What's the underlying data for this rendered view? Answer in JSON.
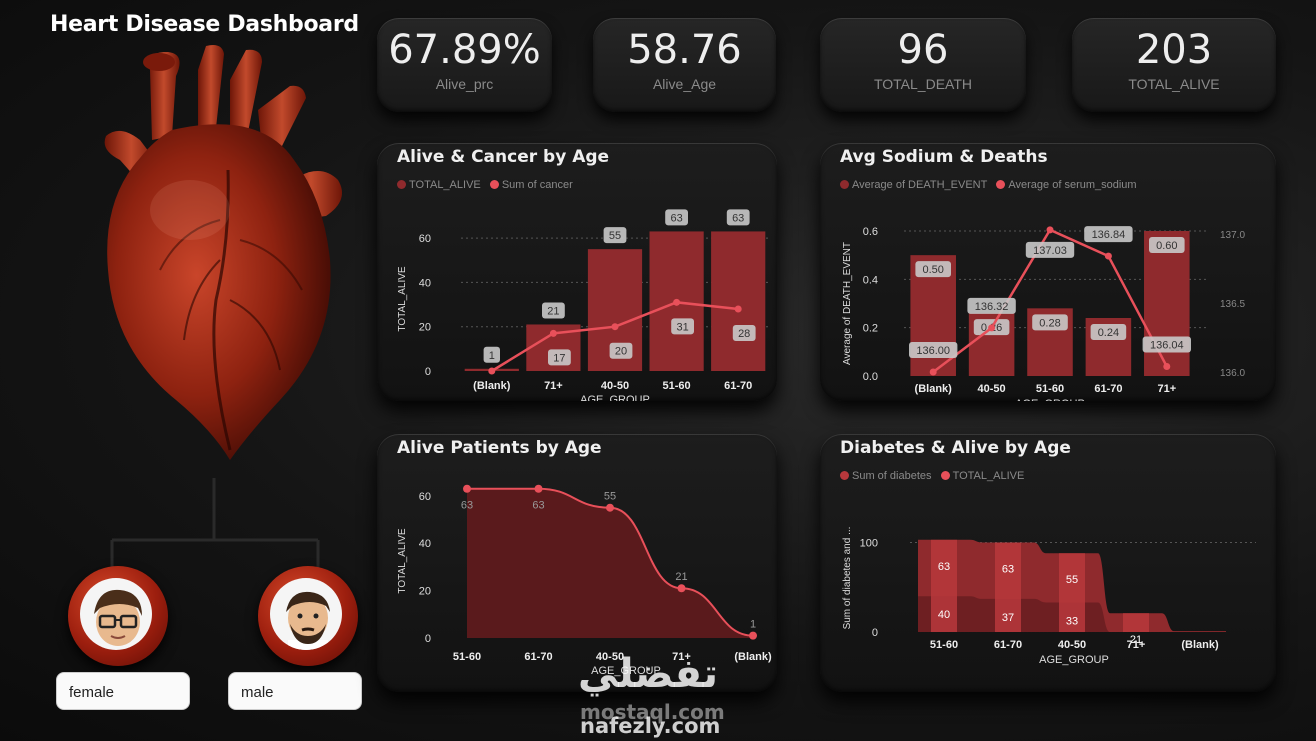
{
  "dashboard": {
    "title": "Heart Disease Dashboard"
  },
  "kpis": [
    {
      "value": "67.89%",
      "label": "Alive_prc"
    },
    {
      "value": "58.76",
      "label": "Alive_Age"
    },
    {
      "value": "96",
      "label": "TOTAL_DEATH"
    },
    {
      "value": "203",
      "label": "TOTAL_ALIVE"
    }
  ],
  "filters": {
    "female": "female",
    "male": "male"
  },
  "watermark": {
    "arabic": "تفضلي",
    "site1": "mostaql.com",
    "site2": "nafezly.com"
  },
  "colors": {
    "bar": "#8f2a2d",
    "barLight": "#b8383c",
    "line": "#e8505a",
    "label_bg": "#c9c9c9",
    "grid": "#555555",
    "accent": "#a2161a"
  },
  "chart_data": [
    {
      "id": "alive_cancer",
      "type": "bar",
      "title": "Alive & Cancer by Age",
      "legend": [
        "TOTAL_ALIVE",
        "Sum of cancer"
      ],
      "categories": [
        "(Blank)",
        "71+",
        "40-50",
        "51-60",
        "61-70"
      ],
      "series": [
        {
          "name": "TOTAL_ALIVE",
          "type": "bar",
          "values": [
            1,
            21,
            55,
            63,
            63
          ]
        },
        {
          "name": "Sum of cancer",
          "type": "line",
          "values": [
            0,
            17,
            20,
            31,
            28
          ]
        }
      ],
      "line_labels": [
        "",
        "17",
        "20",
        "31",
        "28"
      ],
      "ylabel": "TOTAL_ALIVE",
      "xlabel": "AGE_GROUP",
      "yticks": [
        "0",
        "20",
        "40",
        "60"
      ],
      "ylim": [
        0,
        65
      ]
    },
    {
      "id": "sodium_deaths",
      "type": "bar",
      "title": "Avg Sodium & Deaths",
      "legend": [
        "Average of DEATH_EVENT",
        "Average of serum_sodium"
      ],
      "categories": [
        "(Blank)",
        "40-50",
        "51-60",
        "61-70",
        "71+"
      ],
      "series": [
        {
          "name": "Average of DEATH_EVENT",
          "type": "bar",
          "values": [
            0.5,
            0.26,
            0.28,
            0.24,
            0.6
          ]
        },
        {
          "name": "Average of serum_sodium",
          "type": "line",
          "values": [
            136.0,
            136.32,
            137.03,
            136.84,
            136.04
          ]
        }
      ],
      "bar_labels": [
        "0.50",
        "0.26",
        "0.28",
        "0.24",
        "0.60"
      ],
      "line_labels": [
        "136.00",
        "136.32",
        "137.03",
        "136.84",
        "136.04"
      ],
      "ylabel": "Average of DEATH_EVENT",
      "xlabel": "AGE_GROUP",
      "yticks": [
        "0.0",
        "0.2",
        "0.4",
        "0.6"
      ],
      "y2ticks": [
        "136.0",
        "136.5",
        "137.0"
      ],
      "ylim": [
        0,
        0.6
      ],
      "y2lim": [
        136.0,
        137.0
      ]
    },
    {
      "id": "alive_patients",
      "type": "area",
      "title": "Alive Patients by Age",
      "categories": [
        "51-60",
        "61-70",
        "40-50",
        "71+",
        "(Blank)"
      ],
      "series": [
        {
          "name": "TOTAL_ALIVE",
          "values": [
            63,
            63,
            55,
            21,
            1
          ]
        }
      ],
      "ylabel": "TOTAL_ALIVE",
      "xlabel": "AGE_GROUP",
      "yticks": [
        "0",
        "20",
        "40",
        "60"
      ],
      "ylim": [
        0,
        65
      ]
    },
    {
      "id": "diabetes_alive",
      "type": "area",
      "title": "Diabetes & Alive by Age",
      "legend": [
        "Sum of diabetes",
        "TOTAL_ALIVE"
      ],
      "categories": [
        "51-60",
        "61-70",
        "40-50",
        "71+",
        "(Blank)"
      ],
      "series": [
        {
          "name": "Sum of diabetes",
          "values": [
            40,
            37,
            33,
            0,
            0
          ]
        },
        {
          "name": "TOTAL_ALIVE",
          "values": [
            63,
            63,
            55,
            21,
            1
          ]
        }
      ],
      "labels_bottom": [
        "40",
        "37",
        "33",
        "",
        ""
      ],
      "labels_top": [
        "63",
        "63",
        "55",
        "21",
        ""
      ],
      "ylabel": "Sum of diabetes and ...",
      "xlabel": "AGE_GROUP",
      "yticks": [
        "0",
        "100"
      ],
      "ylim": [
        0,
        105
      ]
    }
  ]
}
